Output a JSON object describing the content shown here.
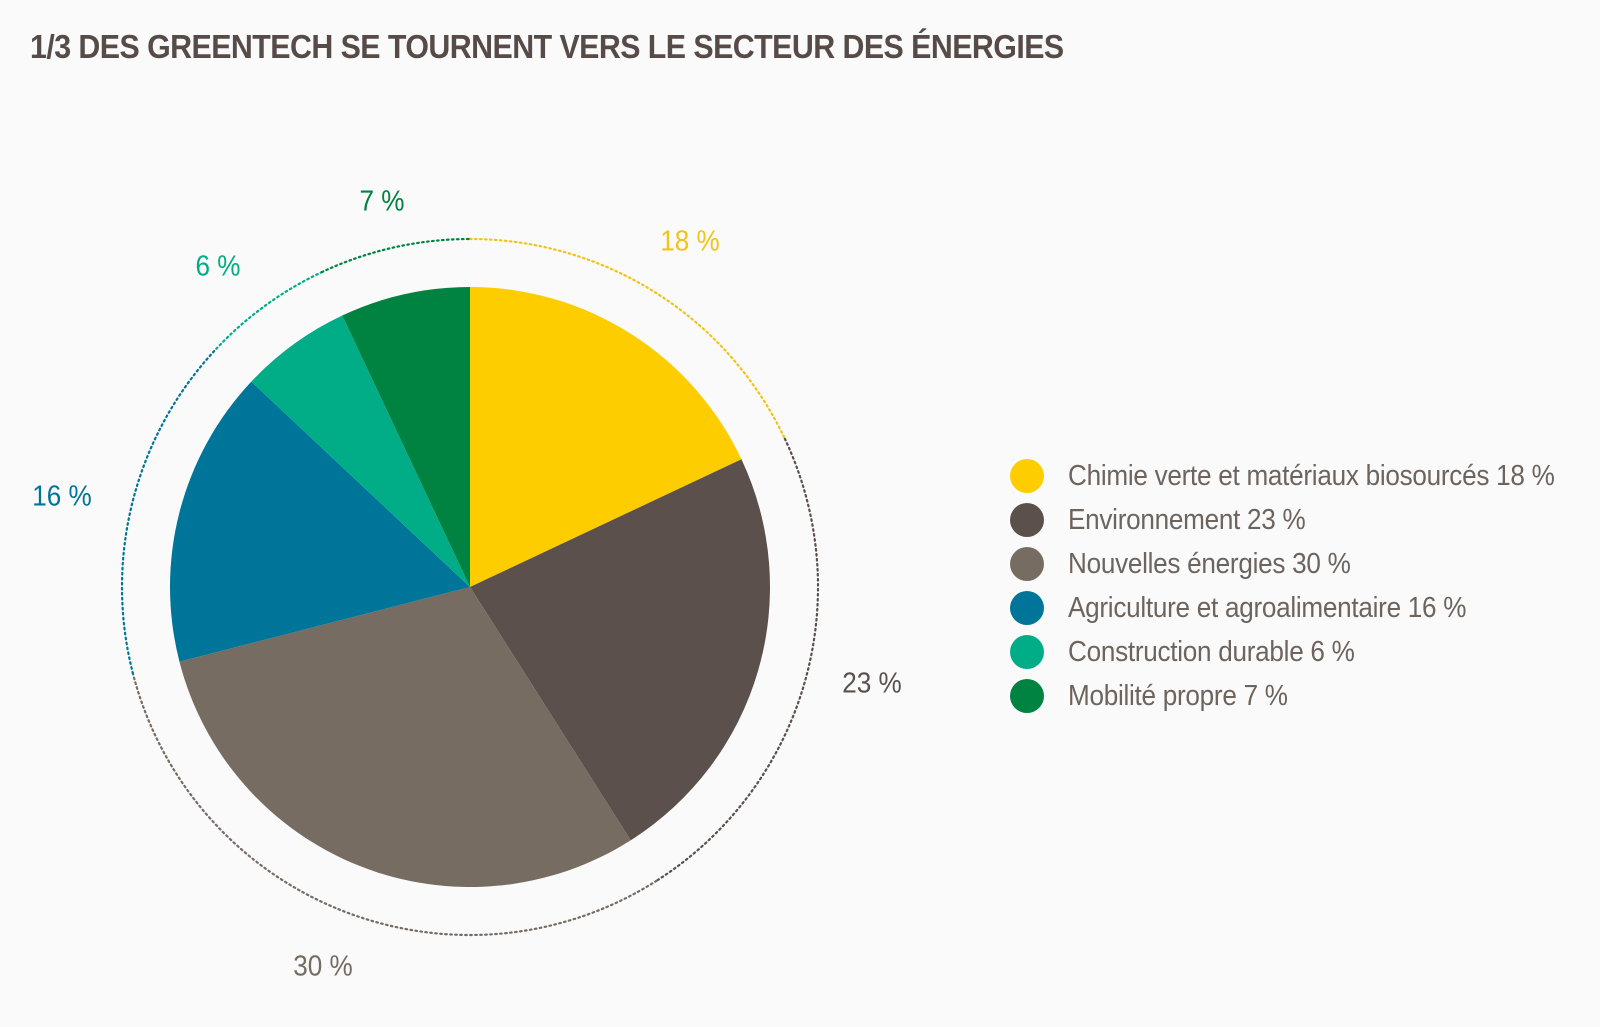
{
  "title": "1/3 DES GREENTECH SE TOURNENT VERS LE SECTEUR DES ÉNERGIES",
  "chart_data": {
    "type": "pie",
    "title": "1/3 DES GREENTECH SE TOURNENT VERS LE SECTEUR DES ÉNERGIES",
    "slices": [
      {
        "name": "Chimie verte et matériaux biosourcés",
        "value": 18,
        "label": "18 %",
        "legend": "Chimie verte et matériaux biosourcés 18 %",
        "color": "#fdcd00"
      },
      {
        "name": "Environnement",
        "value": 23,
        "label": "23 %",
        "legend": "Environnement 23 %",
        "color": "#5c504d"
      },
      {
        "name": "Nouvelles énergies",
        "value": 30,
        "label": "30 %",
        "legend": "Nouvelles énergies 30 %",
        "color": "#766c62"
      },
      {
        "name": "Agriculture et agroalimentaire",
        "value": 16,
        "label": "16 %",
        "legend": "Agriculture et agroalimentaire 16 %",
        "color": "#00759a"
      },
      {
        "name": "Construction durable",
        "value": 6,
        "label": "6 %",
        "legend": "Construction durable 6 %",
        "color": "#00ad86"
      },
      {
        "name": "Mobilité propre",
        "value": 7,
        "label": "7 %",
        "legend": "Mobilité propre 7 %",
        "color": "#008241"
      }
    ],
    "label_colors": [
      "#f0c419",
      "#5c504d",
      "#766c62",
      "#00759a",
      "#00ad86",
      "#008241"
    ],
    "legend_position": "right"
  }
}
